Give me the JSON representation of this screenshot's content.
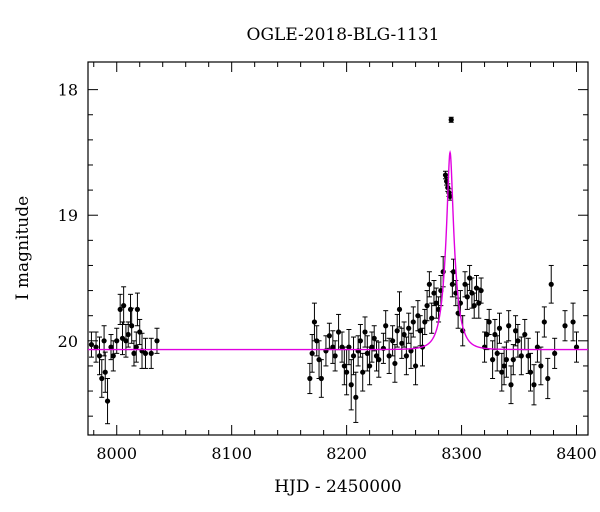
{
  "chart_data": {
    "type": "scatter",
    "title": "OGLE-2018-BLG-1131",
    "xlabel": "HJD - 2450000",
    "ylabel": "I magnitude",
    "xlim": [
      7975,
      8410
    ],
    "ylim": [
      20.75,
      17.78
    ],
    "y_inverted": true,
    "x_ticks": [
      8000,
      8100,
      8200,
      8300,
      8400
    ],
    "y_ticks": [
      18,
      19,
      20
    ],
    "grid": false,
    "colors": {
      "data": "#000000",
      "model": "#e000e0"
    },
    "series": [
      {
        "type": "scatter_with_errorbars",
        "points": [
          [
            7978,
            20.03,
            0.1
          ],
          [
            7982,
            20.05,
            0.12
          ],
          [
            7985,
            20.12,
            0.15
          ],
          [
            7987,
            20.3,
            0.15
          ],
          [
            7989,
            20.0,
            0.12
          ],
          [
            7990,
            20.25,
            0.16
          ],
          [
            7992,
            20.48,
            0.18
          ],
          [
            7995,
            20.05,
            0.1
          ],
          [
            7997,
            20.12,
            0.12
          ],
          [
            8000,
            20.0,
            0.1
          ],
          [
            8003,
            19.75,
            0.12
          ],
          [
            8005,
            19.98,
            0.13
          ],
          [
            8006,
            19.72,
            0.15
          ],
          [
            8008,
            20.0,
            0.13
          ],
          [
            8010,
            19.95,
            0.1
          ],
          [
            8012,
            19.75,
            0.12
          ],
          [
            8013,
            19.88,
            0.14
          ],
          [
            8015,
            20.1,
            0.1
          ],
          [
            8017,
            20.05,
            0.12
          ],
          [
            8018,
            19.75,
            0.13
          ],
          [
            8020,
            19.93,
            0.1
          ],
          [
            8022,
            20.08,
            0.14
          ],
          [
            8025,
            20.1,
            0.12
          ],
          [
            8030,
            20.1,
            0.12
          ],
          [
            8035,
            20.0,
            0.1
          ],
          [
            8168,
            20.3,
            0.12
          ],
          [
            8170,
            20.1,
            0.15
          ],
          [
            8172,
            19.85,
            0.15
          ],
          [
            8174,
            20.0,
            0.12
          ],
          [
            8176,
            20.15,
            0.15
          ],
          [
            8178,
            20.3,
            0.15
          ],
          [
            8182,
            20.08,
            0.12
          ],
          [
            8185,
            19.96,
            0.1
          ],
          [
            8188,
            20.05,
            0.13
          ],
          [
            8190,
            20.12,
            0.12
          ],
          [
            8193,
            19.93,
            0.14
          ],
          [
            8196,
            20.05,
            0.12
          ],
          [
            8198,
            20.2,
            0.15
          ],
          [
            8200,
            20.25,
            0.18
          ],
          [
            8202,
            20.05,
            0.14
          ],
          [
            8204,
            20.35,
            0.2
          ],
          [
            8206,
            20.12,
            0.15
          ],
          [
            8208,
            20.45,
            0.2
          ],
          [
            8210,
            20.08,
            0.12
          ],
          [
            8212,
            20.0,
            0.13
          ],
          [
            8214,
            20.25,
            0.15
          ],
          [
            8216,
            19.93,
            0.12
          ],
          [
            8218,
            20.1,
            0.14
          ],
          [
            8220,
            20.2,
            0.15
          ],
          [
            8222,
            20.05,
            0.12
          ],
          [
            8224,
            19.98,
            0.1
          ],
          [
            8226,
            20.12,
            0.12
          ],
          [
            8228,
            20.15,
            0.14
          ],
          [
            8232,
            20.06,
            0.12
          ],
          [
            8234,
            19.88,
            0.12
          ],
          [
            8237,
            20.12,
            0.14
          ],
          [
            8240,
            20.0,
            0.12
          ],
          [
            8242,
            20.18,
            0.15
          ],
          [
            8244,
            19.92,
            0.13
          ],
          [
            8246,
            19.75,
            0.14
          ],
          [
            8248,
            20.02,
            0.12
          ],
          [
            8250,
            19.95,
            0.1
          ],
          [
            8252,
            20.12,
            0.15
          ],
          [
            8254,
            19.9,
            0.12
          ],
          [
            8256,
            20.08,
            0.14
          ],
          [
            8258,
            19.85,
            0.12
          ],
          [
            8260,
            20.2,
            0.15
          ],
          [
            8262,
            19.8,
            0.12
          ],
          [
            8264,
            19.92,
            0.12
          ],
          [
            8266,
            20.05,
            0.15
          ],
          [
            8268,
            19.85,
            0.1
          ],
          [
            8270,
            19.72,
            0.12
          ],
          [
            8272,
            19.55,
            0.1
          ],
          [
            8274,
            19.82,
            0.12
          ],
          [
            8276,
            19.62,
            0.1
          ],
          [
            8278,
            19.7,
            0.12
          ],
          [
            8280,
            19.75,
            0.1
          ],
          [
            8282,
            19.6,
            0.12
          ],
          [
            8284,
            19.45,
            0.12
          ],
          [
            8286,
            18.68,
            0.03
          ],
          [
            8287,
            18.73,
            0.03
          ],
          [
            8288,
            18.78,
            0.03
          ],
          [
            8289,
            18.82,
            0.03
          ],
          [
            8290,
            18.85,
            0.03
          ],
          [
            8291,
            18.24,
            0.02
          ],
          [
            8292,
            19.55,
            0.1
          ],
          [
            8293,
            19.45,
            0.1
          ],
          [
            8295,
            19.62,
            0.1
          ],
          [
            8297,
            19.78,
            0.12
          ],
          [
            8299,
            19.7,
            0.1
          ],
          [
            8301,
            19.92,
            0.12
          ],
          [
            8303,
            19.55,
            0.1
          ],
          [
            8305,
            19.65,
            0.1
          ],
          [
            8307,
            19.5,
            0.1
          ],
          [
            8309,
            19.62,
            0.12
          ],
          [
            8311,
            19.72,
            0.1
          ],
          [
            8313,
            19.58,
            0.1
          ],
          [
            8315,
            19.7,
            0.12
          ],
          [
            8317,
            19.6,
            0.1
          ],
          [
            8320,
            20.05,
            0.12
          ],
          [
            8322,
            19.95,
            0.12
          ],
          [
            8324,
            19.85,
            0.1
          ],
          [
            8327,
            20.15,
            0.15
          ],
          [
            8329,
            19.95,
            0.12
          ],
          [
            8331,
            20.1,
            0.14
          ],
          [
            8333,
            19.9,
            0.12
          ],
          [
            8335,
            20.25,
            0.15
          ],
          [
            8337,
            20.2,
            0.15
          ],
          [
            8339,
            20.15,
            0.14
          ],
          [
            8341,
            19.88,
            0.12
          ],
          [
            8343,
            20.35,
            0.15
          ],
          [
            8345,
            20.15,
            0.12
          ],
          [
            8347,
            19.92,
            0.12
          ],
          [
            8349,
            20.0,
            0.13
          ],
          [
            8352,
            20.12,
            0.15
          ],
          [
            8355,
            19.95,
            0.12
          ],
          [
            8358,
            20.12,
            0.14
          ],
          [
            8360,
            20.25,
            0.15
          ],
          [
            8363,
            20.35,
            0.16
          ],
          [
            8366,
            20.05,
            0.12
          ],
          [
            8369,
            20.2,
            0.15
          ],
          [
            8372,
            19.85,
            0.12
          ],
          [
            8375,
            20.3,
            0.16
          ],
          [
            8378,
            19.55,
            0.15
          ],
          [
            8381,
            20.1,
            0.12
          ],
          [
            8390,
            19.88,
            0.12
          ],
          [
            8397,
            19.85,
            0.15
          ],
          [
            8400,
            20.05,
            0.12
          ]
        ]
      },
      {
        "type": "model_curve",
        "baseline_mag": 20.07,
        "peak_mag": 18.5,
        "t0": 8290,
        "tE": 8.5
      }
    ]
  }
}
